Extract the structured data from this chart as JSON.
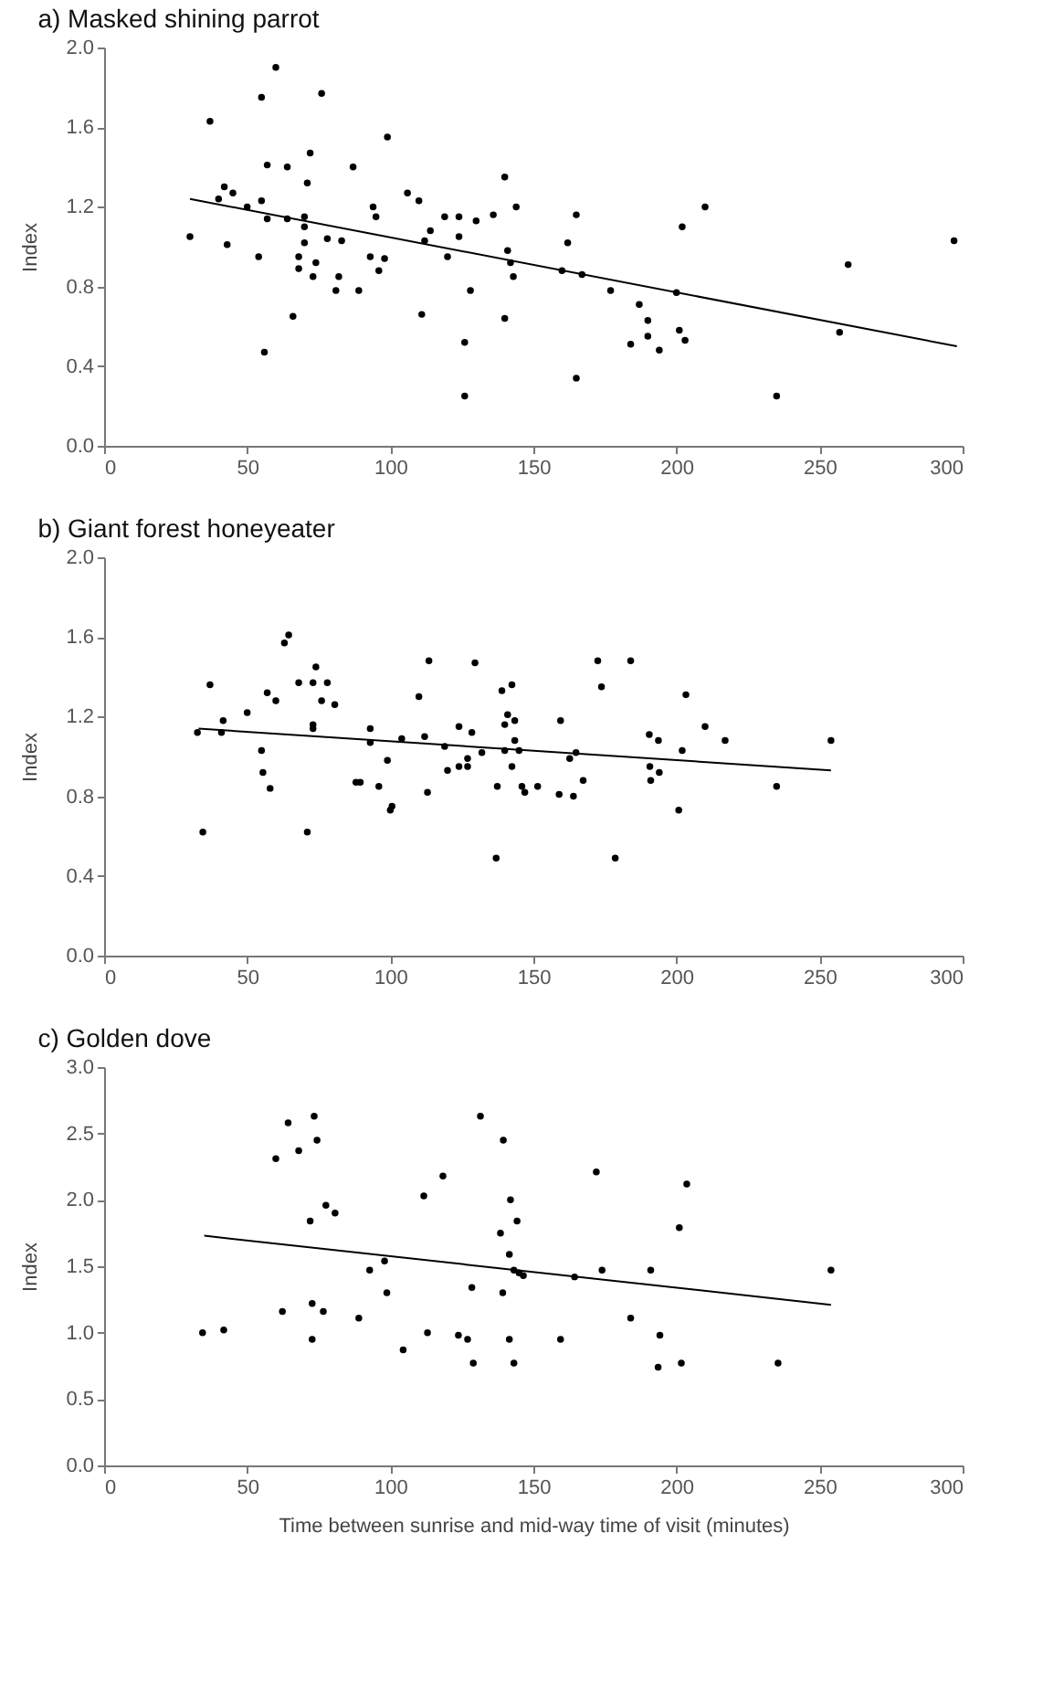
{
  "chart_data": [
    {
      "type": "scatter",
      "title": "a) Masked shining parrot",
      "ylabel": "Index",
      "xlim": [
        0,
        300
      ],
      "xticks": [
        0,
        50,
        100,
        150,
        200,
        250,
        300
      ],
      "ylim": [
        0,
        2
      ],
      "yticks": [
        {
          "value": 0,
          "label": "0.0"
        },
        {
          "value": 0.4,
          "label": "0.4"
        },
        {
          "value": 0.8,
          "label": "0.8"
        },
        {
          "value": 1.2,
          "label": "1.2"
        },
        {
          "value": 1.6,
          "label": "1.6"
        },
        {
          "value": 2,
          "label": "2.0"
        }
      ],
      "series": [
        {
          "type": "scatter",
          "color": "#000000",
          "marker": "circle",
          "x": [
            30,
            37,
            40,
            42,
            43,
            45,
            50,
            54,
            55,
            55,
            56,
            57,
            57,
            60,
            64,
            64,
            66,
            68,
            68,
            70,
            70,
            70,
            71,
            72,
            73,
            74,
            76,
            78,
            81,
            82,
            83,
            87,
            89,
            93,
            94,
            95,
            96,
            98,
            99,
            106,
            110,
            111,
            112,
            114,
            119,
            120,
            124,
            124,
            126,
            126,
            128,
            130,
            136,
            140,
            140,
            141,
            142,
            143,
            144,
            160,
            162,
            165,
            165,
            167,
            177,
            184,
            187,
            190,
            190,
            194,
            200,
            201,
            203,
            202,
            210,
            235,
            257,
            260,
            297
          ],
          "values": [
            1.05,
            1.63,
            1.24,
            1.3,
            1.01,
            1.27,
            1.2,
            0.95,
            1.23,
            1.75,
            0.47,
            1.14,
            1.41,
            1.9,
            1.4,
            1.14,
            0.65,
            0.89,
            0.95,
            1.02,
            1.1,
            1.15,
            1.32,
            1.47,
            0.85,
            0.92,
            1.77,
            1.04,
            0.78,
            0.85,
            1.03,
            1.4,
            0.78,
            0.95,
            1.2,
            1.15,
            0.88,
            0.94,
            1.55,
            1.27,
            1.23,
            0.66,
            1.03,
            1.08,
            1.15,
            0.95,
            1.05,
            1.15,
            0.52,
            0.25,
            0.78,
            1.13,
            1.16,
            1.35,
            0.64,
            0.98,
            0.92,
            0.85,
            1.2,
            0.88,
            1.02,
            1.16,
            0.34,
            0.86,
            0.78,
            0.51,
            0.71,
            0.63,
            0.55,
            0.48,
            0.77,
            0.58,
            0.53,
            1.1,
            1.2,
            0.25,
            0.57,
            0.91,
            1.03
          ]
        },
        {
          "type": "line",
          "color": "#000000",
          "x": [
            30,
            298
          ],
          "values": [
            1.24,
            0.5
          ]
        }
      ]
    },
    {
      "type": "scatter",
      "title": "b) Giant forest honeyeater",
      "ylabel": "Index",
      "xlim": [
        0,
        300
      ],
      "xticks": [
        0,
        50,
        100,
        150,
        200,
        250,
        300
      ],
      "ylim": [
        0,
        2
      ],
      "yticks": [
        {
          "value": 0,
          "label": "0.0"
        },
        {
          "value": 0.4,
          "label": "0.4"
        },
        {
          "value": 0.8,
          "label": "0.8"
        },
        {
          "value": 1.2,
          "label": "1.2"
        },
        {
          "value": 1.6,
          "label": "1.6"
        },
        {
          "value": 2,
          "label": "2.0"
        }
      ],
      "series": [
        {
          "type": "scatter",
          "color": "#000000",
          "marker": "circle",
          "x": [
            32.6,
            37,
            34.5,
            41.6,
            41,
            50,
            55,
            55.5,
            58,
            57,
            60,
            63,
            64.5,
            68,
            71,
            73,
            74,
            73,
            73,
            76,
            78,
            80.6,
            88,
            89.5,
            93,
            93,
            96,
            99,
            100,
            100.6,
            104,
            110,
            112,
            113.5,
            113,
            119,
            120,
            124,
            124,
            127,
            127,
            128.5,
            129.6,
            132,
            137,
            137.4,
            139,
            140,
            140,
            141,
            142.5,
            142.5,
            143.5,
            143.5,
            145,
            146,
            147,
            151.5,
            159,
            159.5,
            162.7,
            164,
            164.9,
            167.4,
            172.5,
            173.8,
            178.6,
            184,
            190.5,
            190.7,
            191,
            193.7,
            194,
            200.8,
            202,
            203.3,
            210,
            217,
            235,
            254
          ],
          "values": [
            1.12,
            1.36,
            0.62,
            1.18,
            1.12,
            1.22,
            1.03,
            0.92,
            0.84,
            1.32,
            1.28,
            1.57,
            1.61,
            1.37,
            0.62,
            1.37,
            1.45,
            1.16,
            1.14,
            1.28,
            1.37,
            1.26,
            0.87,
            0.87,
            1.14,
            1.07,
            0.85,
            0.98,
            0.73,
            0.75,
            1.09,
            1.3,
            1.1,
            1.48,
            0.82,
            1.05,
            0.93,
            0.95,
            1.15,
            0.99,
            0.95,
            1.12,
            1.47,
            1.02,
            0.49,
            0.85,
            1.33,
            1.03,
            1.16,
            1.21,
            1.36,
            0.95,
            1.18,
            1.08,
            1.03,
            0.85,
            0.82,
            0.85,
            0.81,
            1.18,
            0.99,
            0.8,
            1.02,
            0.88,
            1.48,
            1.35,
            0.49,
            1.48,
            1.11,
            0.95,
            0.88,
            1.08,
            0.92,
            0.73,
            1.03,
            1.31,
            1.15,
            1.08,
            0.85,
            1.08
          ]
        },
        {
          "type": "line",
          "color": "#000000",
          "x": [
            33,
            254
          ],
          "values": [
            1.14,
            0.93
          ]
        }
      ]
    },
    {
      "type": "scatter",
      "title": "c) Golden dove",
      "xlabel": "Time between sunrise and mid-way time of visit (minutes)",
      "ylabel": "Index",
      "xlim": [
        0,
        300
      ],
      "xticks": [
        0,
        50,
        100,
        150,
        200,
        250,
        300
      ],
      "ylim": [
        0,
        3
      ],
      "yticks": [
        {
          "value": 0,
          "label": "0.0"
        },
        {
          "value": 0.5,
          "label": "0.5"
        },
        {
          "value": 1,
          "label": "1.0"
        },
        {
          "value": 1.5,
          "label": "1.5"
        },
        {
          "value": 2,
          "label": "2.0"
        },
        {
          "value": 2.5,
          "label": "2.5"
        },
        {
          "value": 3,
          "label": "3.0"
        }
      ],
      "series": [
        {
          "type": "scatter",
          "color": "#000000",
          "marker": "circle",
          "x": [
            34.4,
            41.8,
            60,
            62.3,
            64.3,
            68,
            72,
            72.7,
            72.7,
            73.4,
            74.4,
            76.6,
            77.5,
            80.7,
            89,
            92.8,
            98,
            98.8,
            104.5,
            111.7,
            113,
            118.4,
            123.8,
            127,
            128.5,
            129,
            131.5,
            138.5,
            139.3,
            139.5,
            141.6,
            142,
            141.6,
            143.2,
            143.2,
            144.3,
            145,
            146.5,
            159.5,
            164.4,
            172,
            174,
            184,
            191,
            193.6,
            194.2,
            201,
            201.7,
            203.6,
            235.5,
            254
          ],
          "values": [
            1.0,
            1.02,
            2.31,
            1.16,
            2.58,
            2.37,
            1.84,
            1.22,
            0.95,
            2.63,
            2.45,
            1.16,
            1.96,
            1.9,
            1.11,
            1.47,
            1.54,
            1.3,
            0.87,
            2.03,
            1.0,
            2.18,
            0.98,
            0.95,
            1.34,
            0.77,
            2.63,
            1.75,
            1.3,
            2.45,
            1.59,
            2.0,
            0.95,
            0.77,
            1.47,
            1.84,
            1.45,
            1.43,
            0.95,
            1.42,
            2.21,
            1.47,
            1.11,
            1.47,
            0.74,
            0.98,
            1.79,
            0.77,
            2.12,
            0.77,
            1.47
          ]
        },
        {
          "type": "line",
          "color": "#000000",
          "x": [
            35,
            254
          ],
          "values": [
            1.73,
            1.21
          ]
        }
      ]
    }
  ]
}
